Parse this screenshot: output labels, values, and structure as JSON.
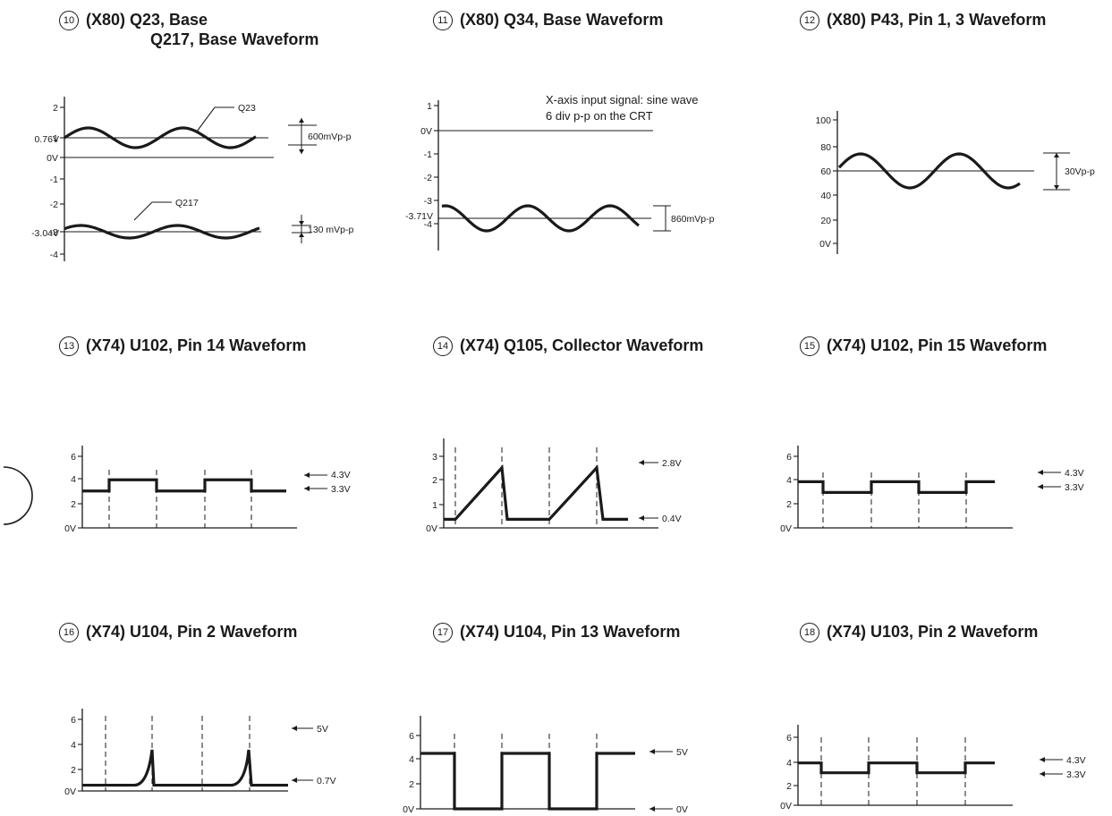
{
  "panels": [
    {
      "id": "p10",
      "num": "10",
      "title_line1": "(X80) Q23, Base",
      "title_line2": "Q217, Base Waveform",
      "ticks_upper": [
        "2",
        "1",
        "0V",
        "-1",
        "-2",
        "-3",
        "-4"
      ],
      "level_a": "0.76V",
      "level_b": "-3.04V",
      "label_a": "Q23",
      "label_b": "Q217",
      "pp_a": "600mVp-p",
      "pp_b": "130 mVp-p"
    },
    {
      "id": "p11",
      "num": "11",
      "title": "(X80) Q34, Base Waveform",
      "ticks": [
        "1",
        "0V",
        "-1",
        "-2",
        "-3",
        "-4"
      ],
      "level": "-3.71V",
      "note_line1": "X-axis input signal: sine wave",
      "note_line2": "6 div p-p on the CRT",
      "pp": "860mVp-p"
    },
    {
      "id": "p12",
      "num": "12",
      "title": "(X80) P43, Pin 1, 3 Waveform",
      "ticks": [
        "100",
        "80",
        "60",
        "40",
        "20",
        "0V"
      ],
      "pp": "30Vp-p"
    },
    {
      "id": "p13",
      "num": "13",
      "title": "(X74) U102, Pin 14 Waveform",
      "ticks": [
        "6",
        "4",
        "2",
        "0V"
      ],
      "level_high": "4.3V",
      "level_low": "3.3V",
      "waveform": {
        "high": 4.3,
        "low": 3.3
      }
    },
    {
      "id": "p14",
      "num": "14",
      "title": "(X74) Q105, Collector Waveform",
      "ticks": [
        "3",
        "2",
        "1",
        "0V"
      ],
      "level_high": "2.8V",
      "level_low": "0.4V",
      "waveform": {
        "peak": 2.8,
        "base": 0.4
      }
    },
    {
      "id": "p15",
      "num": "15",
      "title": "(X74) U102, Pin 15 Waveform",
      "ticks": [
        "6",
        "4",
        "2",
        "0V"
      ],
      "level_high": "4.3V",
      "level_low": "3.3V",
      "waveform": {
        "high": 4.3,
        "low": 3.3
      }
    },
    {
      "id": "p16",
      "num": "16",
      "title": "(X74) U104, Pin 2 Waveform",
      "ticks": [
        "6",
        "4",
        "2",
        "0V"
      ],
      "level_high": "5V",
      "level_low": "0.7V",
      "waveform": {
        "peak": 5,
        "base": 0.7
      }
    },
    {
      "id": "p17",
      "num": "17",
      "title": "(X74) U104, Pin 13 Waveform",
      "ticks": [
        "6",
        "4",
        "2",
        "0V"
      ],
      "level_high": "5V",
      "level_low": "0V",
      "waveform": {
        "high": 5,
        "low": 0
      }
    },
    {
      "id": "p18",
      "num": "18",
      "title": "(X74) U103, Pin 2 Waveform",
      "ticks": [
        "6",
        "4",
        "2",
        "0V"
      ],
      "level_high": "4.3V",
      "level_low": "3.3V",
      "waveform": {
        "high": 4.3,
        "low": 3.3
      }
    }
  ]
}
